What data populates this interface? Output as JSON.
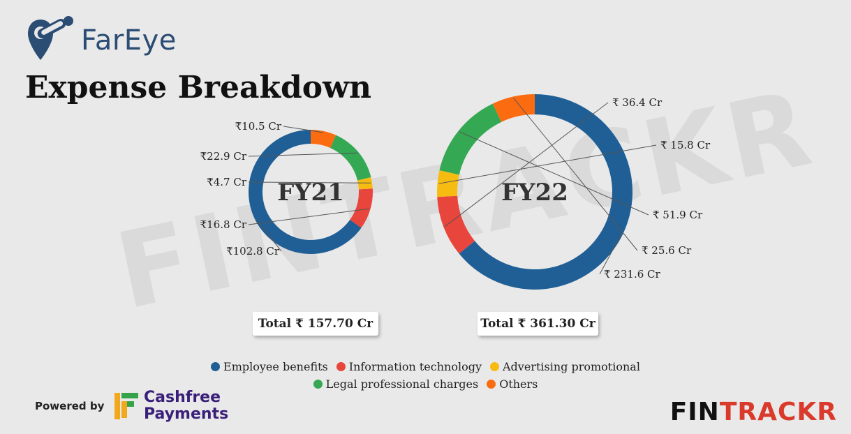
{
  "brand": {
    "name": "FarEye"
  },
  "title": "Expense Breakdown",
  "watermark": "FINTRACKR",
  "chart_data": [
    {
      "type": "pie",
      "center_label": "FY21",
      "categories": [
        "Employee benefits",
        "Information technology",
        "Advertising promotional",
        "Legal professional charges",
        "Others"
      ],
      "values": [
        102.8,
        16.8,
        4.7,
        22.9,
        10.5
      ],
      "value_labels": [
        "₹102.8 Cr",
        "₹16.8 Cr",
        "₹4.7 Cr",
        "₹22.9 Cr",
        "₹10.5 Cr"
      ],
      "total": "Total ₹ 157.70 Cr"
    },
    {
      "type": "pie",
      "center_label": "FY22",
      "categories": [
        "Employee benefits",
        "Information technology",
        "Advertising promotional",
        "Legal professional charges",
        "Others"
      ],
      "values": [
        231.6,
        36.4,
        15.8,
        51.9,
        25.6
      ],
      "value_labels": [
        "₹ 231.6 Cr",
        "₹ 36.4 Cr",
        "₹ 15.8 Cr",
        "₹ 51.9 Cr",
        "₹ 25.6 Cr"
      ],
      "total": "Total ₹ 361.30 Cr"
    }
  ],
  "legend": [
    {
      "label": "Employee benefits",
      "color": "#1f5f96"
    },
    {
      "label": "Information technology",
      "color": "#e8453c"
    },
    {
      "label": "Advertising promotional",
      "color": "#f7bc12"
    },
    {
      "label": "Legal professional charges",
      "color": "#34a853"
    },
    {
      "label": "Others",
      "color": "#fb6c11"
    }
  ],
  "footer": {
    "powered_by": "Powered by",
    "sponsor_line1": "Cashfree",
    "sponsor_line2": "Payments",
    "fintrackr_a": "FIN",
    "fintrackr_b": "TRACKR"
  }
}
